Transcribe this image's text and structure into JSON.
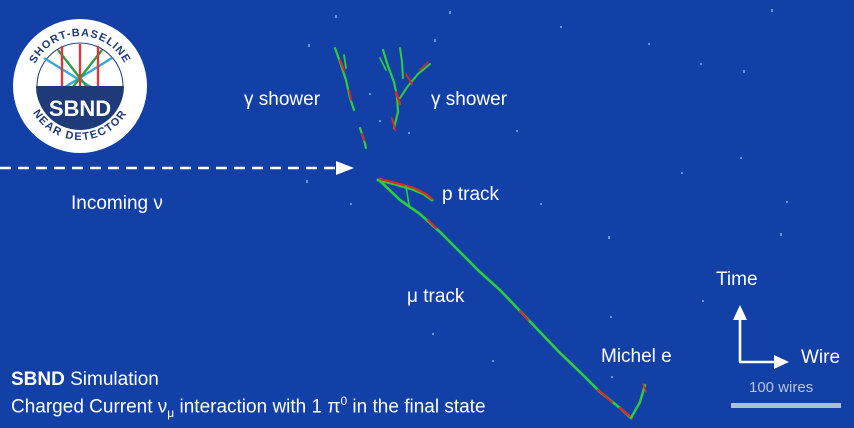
{
  "labels": {
    "gamma_shower_left": "γ shower",
    "gamma_shower_right": "γ shower",
    "p_track": "p track",
    "incoming_nu": "Incoming ν",
    "mu_track": "μ track",
    "michel_e": "Michel e"
  },
  "axes": {
    "time_label": "Time",
    "wire_label": "Wire",
    "scale_label": "100 wires"
  },
  "caption": {
    "experiment": "SBND",
    "kind": "Simulation",
    "line2_pre": "Charged Current ν",
    "line2_sub": "μ",
    "line2_mid": " interaction with 1 π",
    "line2_sup": "0",
    "line2_post": " in the final state"
  },
  "logo": {
    "ring_text": "SHORT-BASELINE NEAR DETECTOR",
    "center_text": "SBND"
  },
  "colors": {
    "background": "#1340a6",
    "track_green": "#2ecc40",
    "track_red": "#e0281e",
    "logo_navy": "#1f3a78"
  }
}
